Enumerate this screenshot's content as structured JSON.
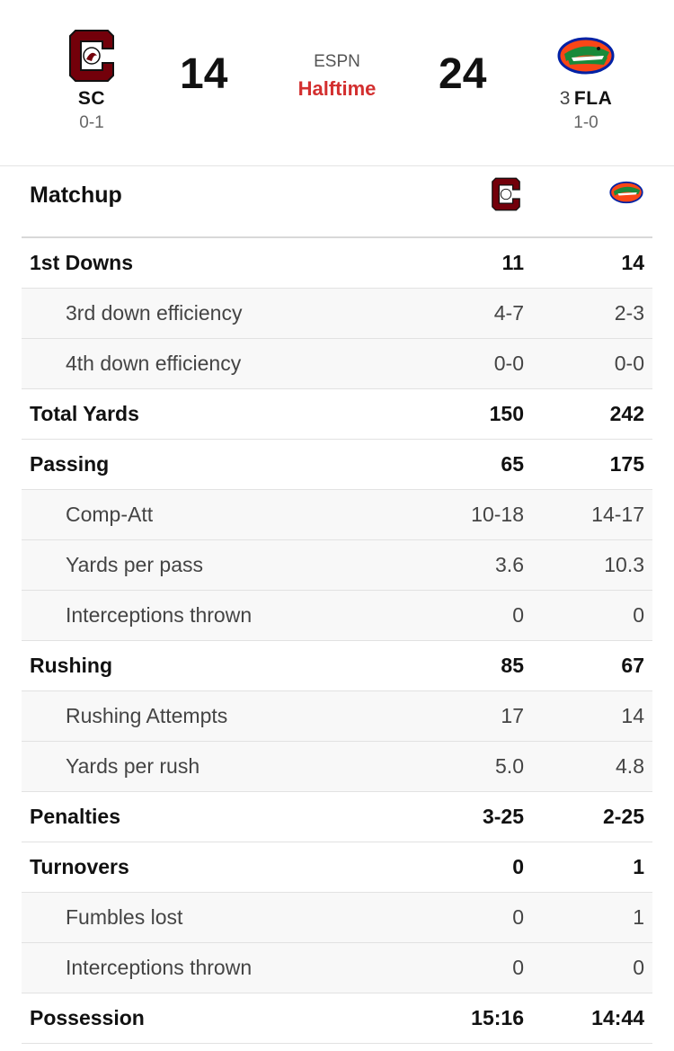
{
  "game": {
    "network": "ESPN",
    "status": "Halftime",
    "status_color": "#d32f2f"
  },
  "away_team": {
    "abbr": "SC",
    "record": "0-1",
    "score": "14",
    "logo_icon": "south-carolina-gamecock-logo",
    "logo_color": "#73000a"
  },
  "home_team": {
    "rank": "3",
    "abbr": "FLA",
    "record": "1-0",
    "score": "24",
    "logo_icon": "florida-gator-logo",
    "logo_color": "#0021a5"
  },
  "matchup": {
    "title": "Matchup",
    "rows": [
      {
        "label": "1st Downs",
        "away": "11",
        "home": "14",
        "type": "main"
      },
      {
        "label": "3rd down efficiency",
        "away": "4-7",
        "home": "2-3",
        "type": "sub"
      },
      {
        "label": "4th down efficiency",
        "away": "0-0",
        "home": "0-0",
        "type": "sub"
      },
      {
        "label": "Total Yards",
        "away": "150",
        "home": "242",
        "type": "main"
      },
      {
        "label": "Passing",
        "away": "65",
        "home": "175",
        "type": "main"
      },
      {
        "label": "Comp-Att",
        "away": "10-18",
        "home": "14-17",
        "type": "sub"
      },
      {
        "label": "Yards per pass",
        "away": "3.6",
        "home": "10.3",
        "type": "sub"
      },
      {
        "label": "Interceptions thrown",
        "away": "0",
        "home": "0",
        "type": "sub"
      },
      {
        "label": "Rushing",
        "away": "85",
        "home": "67",
        "type": "main"
      },
      {
        "label": "Rushing Attempts",
        "away": "17",
        "home": "14",
        "type": "sub"
      },
      {
        "label": "Yards per rush",
        "away": "5.0",
        "home": "4.8",
        "type": "sub"
      },
      {
        "label": "Penalties",
        "away": "3-25",
        "home": "2-25",
        "type": "main"
      },
      {
        "label": "Turnovers",
        "away": "0",
        "home": "1",
        "type": "main"
      },
      {
        "label": "Fumbles lost",
        "away": "0",
        "home": "1",
        "type": "sub"
      },
      {
        "label": "Interceptions thrown",
        "away": "0",
        "home": "0",
        "type": "sub"
      },
      {
        "label": "Possession",
        "away": "15:16",
        "home": "14:44",
        "type": "main"
      }
    ]
  }
}
